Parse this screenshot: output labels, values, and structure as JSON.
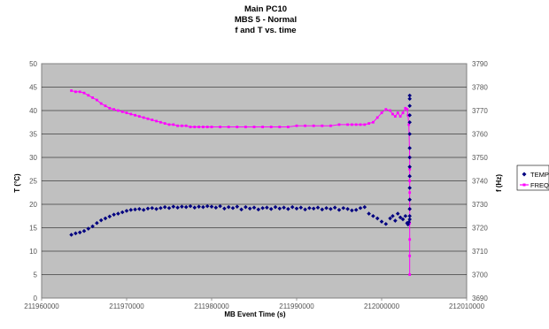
{
  "chart_data": {
    "type": "scatter",
    "title_lines": [
      "Main PC10",
      "MBS 5 - Normal",
      "f and T vs. time"
    ],
    "xlabel": "MB Event Time (s)",
    "ylabel_left": "T (°C)",
    "ylabel_right": "f (Hz)",
    "xlim": [
      211960000,
      212010000
    ],
    "ylim_left": [
      0,
      50
    ],
    "ylim_right": [
      3690,
      3790
    ],
    "x_ticks": [
      211960000,
      211970000,
      211980000,
      211990000,
      212000000,
      212010000
    ],
    "y_ticks_left": [
      0,
      5,
      10,
      15,
      20,
      25,
      30,
      35,
      40,
      45,
      50
    ],
    "y_ticks_right": [
      3690,
      3700,
      3710,
      3720,
      3730,
      3740,
      3750,
      3760,
      3770,
      3780,
      3790
    ],
    "grid": "horizontal",
    "plot_background": "#c0c0c0",
    "legend_position": "right",
    "series": [
      {
        "name": "TEMP",
        "axis": "left",
        "color": "#000080",
        "marker": "diamond",
        "line": false,
        "x": [
          211963500,
          211964000,
          211964500,
          211965000,
          211965500,
          211966000,
          211966500,
          211967000,
          211967500,
          211968000,
          211968500,
          211969000,
          211969500,
          211970000,
          211970500,
          211971000,
          211971500,
          211972000,
          211972500,
          211973000,
          211973500,
          211974000,
          211974500,
          211975000,
          211975500,
          211976000,
          211976500,
          211977000,
          211977500,
          211978000,
          211978500,
          211979000,
          211979500,
          211980000,
          211980500,
          211981000,
          211981500,
          211982000,
          211982500,
          211983000,
          211983500,
          211984000,
          211984500,
          211985000,
          211985500,
          211986000,
          211986500,
          211987000,
          211987500,
          211988000,
          211988500,
          211989000,
          211989500,
          211990000,
          211990500,
          211991000,
          211991500,
          211992000,
          211992500,
          211993000,
          211993500,
          211994000,
          211994500,
          211995000,
          211995500,
          211996000,
          211996500,
          211997000,
          211997500,
          211998000,
          211998500,
          211999000,
          211999500,
          212000000,
          212000500,
          212001000,
          212001300,
          212001600,
          212001900,
          212002200,
          212002500,
          212002800,
          212003000,
          212003100,
          212003200,
          212003300,
          212003300,
          212003300,
          212003300,
          212003300,
          212003300,
          212003300,
          212003300,
          212003300,
          212003300,
          212003300,
          212003300,
          212003300,
          212003300,
          212003300
        ],
        "y": [
          13.5,
          13.8,
          14.0,
          14.3,
          14.8,
          15.3,
          16.0,
          16.6,
          17.0,
          17.4,
          17.8,
          18.0,
          18.3,
          18.6,
          18.8,
          18.9,
          19.0,
          18.8,
          19.1,
          19.2,
          19.0,
          19.2,
          19.4,
          19.2,
          19.5,
          19.3,
          19.5,
          19.4,
          19.6,
          19.3,
          19.5,
          19.4,
          19.6,
          19.5,
          19.3,
          19.6,
          19.1,
          19.4,
          19.2,
          19.5,
          18.9,
          19.4,
          19.1,
          19.3,
          18.9,
          19.2,
          19.3,
          19.0,
          19.4,
          19.1,
          19.3,
          19.0,
          19.4,
          19.1,
          19.3,
          18.9,
          19.2,
          19.1,
          19.3,
          18.9,
          19.2,
          19.0,
          19.3,
          18.8,
          19.2,
          19.0,
          18.7,
          18.8,
          19.2,
          19.4,
          18.0,
          17.5,
          17.0,
          16.3,
          15.8,
          17.0,
          17.5,
          16.5,
          18.0,
          17.2,
          16.8,
          17.5,
          16.0,
          15.7,
          16.2,
          16.8,
          17.5,
          19.0,
          21.0,
          23.5,
          26.0,
          28.0,
          30.0,
          32.0,
          35.0,
          37.5,
          39.0,
          41.0,
          42.5,
          43.2
        ]
      },
      {
        "name": "FREQ",
        "axis": "right",
        "color": "#ff00ff",
        "marker": "square",
        "line": true,
        "x": [
          211963500,
          211964000,
          211964500,
          211965000,
          211965500,
          211966000,
          211966500,
          211967000,
          211967500,
          211968000,
          211968500,
          211969000,
          211969500,
          211970000,
          211970500,
          211971000,
          211971500,
          211972000,
          211972500,
          211973000,
          211973500,
          211974000,
          211974500,
          211975000,
          211975500,
          211976000,
          211976500,
          211977000,
          211977500,
          211978000,
          211978500,
          211979000,
          211979500,
          211980000,
          211981000,
          211982000,
          211983000,
          211984000,
          211985000,
          211986000,
          211987000,
          211988000,
          211989000,
          211990000,
          211991000,
          211992000,
          211993000,
          211994000,
          211995000,
          211996000,
          211996500,
          211997000,
          211997500,
          211998000,
          211998500,
          211999000,
          211999500,
          212000000,
          212000500,
          212001000,
          212001300,
          212001600,
          212001900,
          212002200,
          212002500,
          212002800,
          212003000,
          212003100,
          212003200,
          212003300,
          212003300,
          212003300,
          212003300,
          212003300,
          212003300,
          212003300,
          212003300,
          212003300
        ],
        "y": [
          3778.5,
          3778.0,
          3778.0,
          3777.5,
          3776.5,
          3775.5,
          3774.5,
          3773.0,
          3772.0,
          3771.0,
          3770.5,
          3770.0,
          3769.5,
          3769.0,
          3768.5,
          3768.0,
          3767.5,
          3767.0,
          3766.5,
          3766.0,
          3765.5,
          3765.0,
          3764.5,
          3764.0,
          3764.0,
          3763.5,
          3763.5,
          3763.5,
          3763.0,
          3763.0,
          3763.0,
          3763.0,
          3763.0,
          3763.0,
          3763.0,
          3763.0,
          3763.0,
          3763.0,
          3763.0,
          3763.0,
          3763.0,
          3763.0,
          3763.0,
          3763.5,
          3763.5,
          3763.5,
          3763.5,
          3763.5,
          3764.0,
          3764.0,
          3764.0,
          3764.0,
          3764.0,
          3764.0,
          3764.5,
          3765.0,
          3767.0,
          3769.0,
          3770.5,
          3770.0,
          3768.5,
          3767.5,
          3769.0,
          3767.5,
          3769.0,
          3771.0,
          3770.5,
          3768.0,
          3764.0,
          3750.0,
          3745.0,
          3740.0,
          3735.0,
          3728.0,
          3722.0,
          3715.0,
          3708.0,
          3700.0
        ]
      }
    ]
  }
}
